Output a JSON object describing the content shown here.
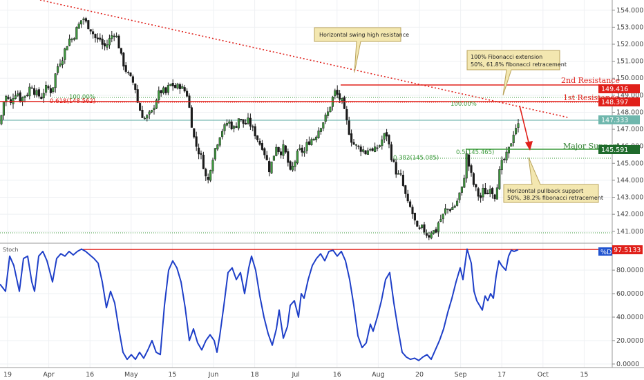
{
  "chart_data": [
    {
      "type": "candlestick",
      "panel": "price",
      "ylim": [
        140.3,
        154.6
      ],
      "y_ticks": [
        141,
        142,
        143,
        144,
        145,
        146,
        147,
        148,
        149,
        150,
        151,
        152,
        153,
        154
      ],
      "y_tick_labels": [
        "141.000",
        "142.000",
        "143.000",
        "144.000",
        "145.000",
        "146.000",
        "147.000",
        "148.000",
        "149.000",
        "150.000",
        "151.000",
        "152.000",
        "153.000",
        "154.000"
      ],
      "x_labels": [
        "19",
        "Apr",
        "16",
        "May",
        "15",
        "Jun",
        "18",
        "Jul",
        "16",
        "Aug",
        "20",
        "Sep",
        "17",
        "Oct",
        "15"
      ],
      "close_path": [
        [
          0,
          147.3
        ],
        [
          5,
          148.6
        ],
        [
          10,
          149.0
        ],
        [
          15,
          148.4
        ],
        [
          20,
          149.1
        ],
        [
          25,
          149.2
        ],
        [
          30,
          148.7
        ],
        [
          35,
          149.0
        ],
        [
          40,
          149.1
        ],
        [
          45,
          149.7
        ],
        [
          50,
          149.2
        ],
        [
          55,
          149.0
        ],
        [
          60,
          148.9
        ],
        [
          65,
          149.4
        ],
        [
          70,
          149.4
        ],
        [
          75,
          149.2
        ],
        [
          80,
          150.2
        ],
        [
          85,
          150.9
        ],
        [
          90,
          151.2
        ],
        [
          95,
          151.8
        ],
        [
          100,
          152.3
        ],
        [
          105,
          152.3
        ],
        [
          110,
          152.8
        ],
        [
          115,
          153.2
        ],
        [
          120,
          153.6
        ],
        [
          125,
          153.2
        ],
        [
          130,
          153.0
        ],
        [
          135,
          152.6
        ],
        [
          140,
          152.2
        ],
        [
          145,
          152.3
        ],
        [
          150,
          151.8
        ],
        [
          155,
          152.0
        ],
        [
          160,
          152.4
        ],
        [
          165,
          152.7
        ],
        [
          170,
          152.3
        ],
        [
          175,
          151.3
        ],
        [
          180,
          150.7
        ],
        [
          185,
          150.2
        ],
        [
          190,
          149.9
        ],
        [
          195,
          149.6
        ],
        [
          200,
          148.4
        ],
        [
          205,
          147.9
        ],
        [
          210,
          147.6
        ],
        [
          215,
          147.8
        ],
        [
          220,
          148.0
        ],
        [
          225,
          148.7
        ],
        [
          230,
          149.1
        ],
        [
          235,
          149.3
        ],
        [
          240,
          149.1
        ],
        [
          245,
          149.6
        ],
        [
          250,
          149.6
        ],
        [
          255,
          149.4
        ],
        [
          260,
          149.6
        ],
        [
          265,
          149.3
        ],
        [
          270,
          149.2
        ],
        [
          275,
          148.0
        ],
        [
          280,
          146.6
        ],
        [
          285,
          145.9
        ],
        [
          290,
          145.5
        ],
        [
          295,
          144.8
        ],
        [
          300,
          143.7
        ],
        [
          305,
          144.9
        ],
        [
          310,
          145.7
        ],
        [
          315,
          146.3
        ],
        [
          320,
          146.9
        ],
        [
          325,
          147.1
        ],
        [
          330,
          147.5
        ],
        [
          335,
          147.2
        ],
        [
          340,
          147.0
        ],
        [
          345,
          147.7
        ],
        [
          350,
          147.4
        ],
        [
          355,
          147.3
        ],
        [
          360,
          147.5
        ],
        [
          365,
          147.0
        ],
        [
          370,
          146.7
        ],
        [
          375,
          146.2
        ],
        [
          380,
          146.0
        ],
        [
          385,
          145.3
        ],
        [
          390,
          144.6
        ],
        [
          395,
          145.3
        ],
        [
          400,
          146.1
        ],
        [
          405,
          145.6
        ],
        [
          410,
          145.9
        ],
        [
          415,
          145.4
        ],
        [
          420,
          144.4
        ],
        [
          425,
          144.9
        ],
        [
          430,
          145.5
        ],
        [
          435,
          145.8
        ],
        [
          440,
          145.6
        ],
        [
          445,
          146.2
        ],
        [
          450,
          146.4
        ],
        [
          455,
          146.5
        ],
        [
          460,
          146.9
        ],
        [
          465,
          147.3
        ],
        [
          470,
          147.6
        ],
        [
          475,
          148.0
        ],
        [
          480,
          148.7
        ],
        [
          485,
          149.2
        ],
        [
          490,
          148.9
        ],
        [
          495,
          148.6
        ],
        [
          500,
          147.7
        ],
        [
          505,
          146.9
        ],
        [
          510,
          146.2
        ],
        [
          515,
          146.0
        ],
        [
          520,
          145.9
        ],
        [
          525,
          145.8
        ],
        [
          530,
          145.6
        ],
        [
          535,
          146.0
        ],
        [
          540,
          145.6
        ],
        [
          545,
          145.9
        ],
        [
          550,
          146.1
        ],
        [
          555,
          146.6
        ],
        [
          560,
          146.7
        ],
        [
          565,
          145.6
        ],
        [
          570,
          144.9
        ],
        [
          575,
          144.3
        ],
        [
          580,
          144.2
        ],
        [
          585,
          143.4
        ],
        [
          590,
          142.6
        ],
        [
          595,
          142.3
        ],
        [
          600,
          141.6
        ],
        [
          605,
          140.9
        ],
        [
          610,
          141.2
        ],
        [
          615,
          141.0
        ],
        [
          620,
          140.7
        ],
        [
          625,
          141.1
        ],
        [
          630,
          140.9
        ],
        [
          635,
          141.6
        ],
        [
          640,
          141.8
        ],
        [
          645,
          142.3
        ],
        [
          650,
          142.3
        ],
        [
          655,
          142.4
        ],
        [
          660,
          142.6
        ],
        [
          665,
          143.2
        ],
        [
          670,
          143.6
        ],
        [
          675,
          145.5
        ],
        [
          680,
          144.6
        ],
        [
          685,
          143.8
        ],
        [
          690,
          143.3
        ],
        [
          695,
          142.9
        ],
        [
          700,
          143.5
        ],
        [
          705,
          143.1
        ],
        [
          710,
          143.8
        ],
        [
          715,
          142.9
        ],
        [
          720,
          143.9
        ],
        [
          725,
          144.9
        ],
        [
          730,
          145.2
        ],
        [
          735,
          145.6
        ],
        [
          740,
          146.3
        ],
        [
          745,
          147.1
        ],
        [
          750,
          147.2
        ]
      ],
      "resistance_levels": [
        {
          "label": "2nd Resistance",
          "value": 149.416
        },
        {
          "label": "1st Resistance",
          "value": 148.397
        }
      ],
      "support_levels": [
        {
          "label": "Major Support",
          "value": 145.591
        }
      ],
      "fib_labels": {
        "upper_100": "100.00%",
        "upper_618": "0.618(148.562)",
        "right_ext": "100.00%",
        "lower_5": "0.5(145.465)",
        "lower_382": "0.382(145.085)"
      },
      "current_price": "147.333",
      "badges": [
        "149.416",
        "148.397",
        "147.333",
        "145.591"
      ],
      "annotations": [
        "Horizontal swing high resistance",
        "100% Fibonacci extension",
        "50%, 61.8% fibonacci retracement",
        "Horizontal pullback support",
        "50%, 38.2% fibonacci retracement"
      ]
    },
    {
      "type": "line",
      "panel": "indicator",
      "title": "Stoch",
      "ylim": [
        -3,
        103
      ],
      "y_ticks": [
        0,
        20,
        40,
        60,
        80
      ],
      "y_tick_labels": [
        "0.0000",
        "20.0000",
        "40.0000",
        "60.0000",
        "80.0000"
      ],
      "series": [
        {
          "name": "%D",
          "color": "#1e3fc8",
          "value_label": "97.5133",
          "points": [
            [
              0,
              68
            ],
            [
              8,
              62
            ],
            [
              14,
              92
            ],
            [
              20,
              84
            ],
            [
              28,
              62
            ],
            [
              34,
              90
            ],
            [
              40,
              92
            ],
            [
              46,
              70
            ],
            [
              50,
              62
            ],
            [
              56,
              92
            ],
            [
              62,
              96
            ],
            [
              68,
              88
            ],
            [
              76,
              70
            ],
            [
              82,
              90
            ],
            [
              88,
              94
            ],
            [
              94,
              92
            ],
            [
              100,
              96
            ],
            [
              106,
              93
            ],
            [
              112,
              96
            ],
            [
              118,
              98
            ],
            [
              124,
              96
            ],
            [
              130,
              93
            ],
            [
              136,
              90
            ],
            [
              142,
              86
            ],
            [
              148,
              70
            ],
            [
              154,
              48
            ],
            [
              160,
              62
            ],
            [
              166,
              52
            ],
            [
              172,
              30
            ],
            [
              178,
              10
            ],
            [
              184,
              4
            ],
            [
              190,
              8
            ],
            [
              196,
              4
            ],
            [
              202,
              10
            ],
            [
              208,
              5
            ],
            [
              214,
              12
            ],
            [
              220,
              20
            ],
            [
              226,
              10
            ],
            [
              232,
              8
            ],
            [
              238,
              50
            ],
            [
              244,
              80
            ],
            [
              250,
              88
            ],
            [
              256,
              82
            ],
            [
              262,
              70
            ],
            [
              268,
              48
            ],
            [
              274,
              20
            ],
            [
              280,
              30
            ],
            [
              286,
              18
            ],
            [
              292,
              12
            ],
            [
              298,
              20
            ],
            [
              304,
              25
            ],
            [
              310,
              20
            ],
            [
              314,
              10
            ],
            [
              318,
              24
            ],
            [
              324,
              50
            ],
            [
              330,
              78
            ],
            [
              336,
              82
            ],
            [
              342,
              72
            ],
            [
              348,
              78
            ],
            [
              354,
              60
            ],
            [
              360,
              82
            ],
            [
              364,
              92
            ],
            [
              370,
              80
            ],
            [
              376,
              58
            ],
            [
              382,
              40
            ],
            [
              388,
              26
            ],
            [
              394,
              16
            ],
            [
              400,
              30
            ],
            [
              404,
              46
            ],
            [
              410,
              22
            ],
            [
              416,
              32
            ],
            [
              420,
              50
            ],
            [
              426,
              54
            ],
            [
              432,
              40
            ],
            [
              436,
              60
            ],
            [
              440,
              56
            ],
            [
              446,
              72
            ],
            [
              452,
              84
            ],
            [
              458,
              90
            ],
            [
              464,
              94
            ],
            [
              470,
              88
            ],
            [
              476,
              96
            ],
            [
              482,
              97
            ],
            [
              488,
              92
            ],
            [
              494,
              96
            ],
            [
              500,
              88
            ],
            [
              506,
              72
            ],
            [
              512,
              50
            ],
            [
              518,
              24
            ],
            [
              524,
              14
            ],
            [
              530,
              18
            ],
            [
              536,
              34
            ],
            [
              540,
              28
            ],
            [
              546,
              40
            ],
            [
              552,
              54
            ],
            [
              558,
              72
            ],
            [
              564,
              78
            ],
            [
              570,
              52
            ],
            [
              576,
              30
            ],
            [
              582,
              10
            ],
            [
              588,
              6
            ],
            [
              594,
              4
            ],
            [
              600,
              5
            ],
            [
              606,
              3
            ],
            [
              612,
              6
            ],
            [
              618,
              8
            ],
            [
              624,
              4
            ],
            [
              630,
              12
            ],
            [
              636,
              20
            ],
            [
              642,
              30
            ],
            [
              648,
              44
            ],
            [
              654,
              56
            ],
            [
              660,
              70
            ],
            [
              666,
              82
            ],
            [
              670,
              72
            ],
            [
              676,
              98
            ],
            [
              682,
              86
            ],
            [
              686,
              62
            ],
            [
              690,
              54
            ],
            [
              694,
              50
            ],
            [
              698,
              46
            ],
            [
              702,
              58
            ],
            [
              706,
              54
            ],
            [
              710,
              60
            ],
            [
              714,
              56
            ],
            [
              718,
              75
            ],
            [
              722,
              88
            ],
            [
              726,
              84
            ],
            [
              732,
              80
            ],
            [
              736,
              92
            ],
            [
              740,
              97
            ],
            [
              744,
              96
            ],
            [
              750,
              97.5
            ]
          ]
        }
      ],
      "reference_line": 97.5133
    }
  ]
}
